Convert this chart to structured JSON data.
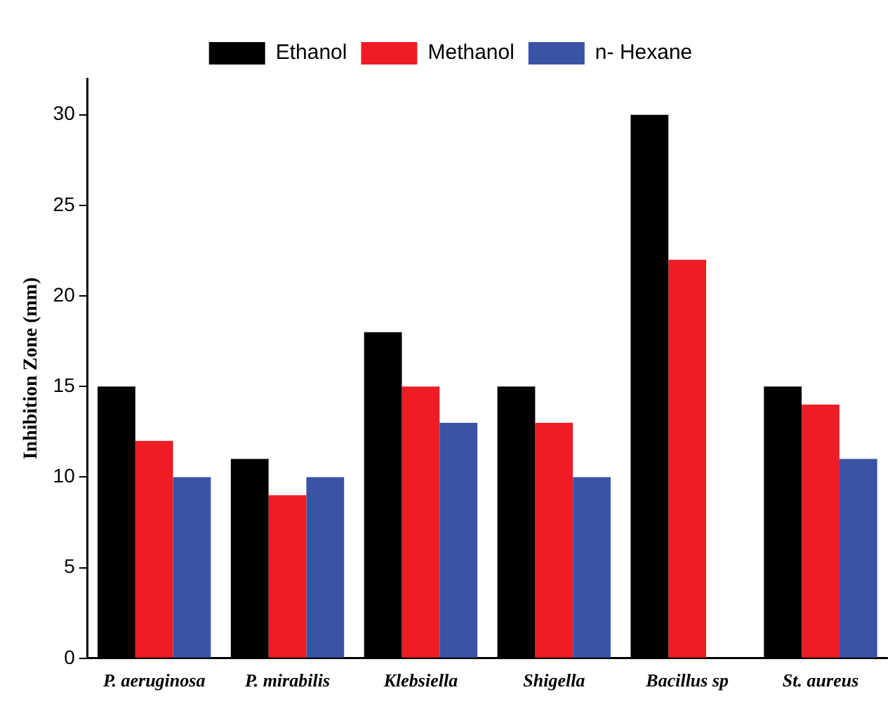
{
  "chart_data": {
    "type": "bar",
    "ylabel": "Inhibition Zone (mm)",
    "categories": [
      "P. aeruginosa",
      "P. mirabilis",
      "Klebsiella",
      "Shigella",
      "Bacillus sp",
      "St. aureus"
    ],
    "series": [
      {
        "name": "Ethanol",
        "color": "#000000",
        "values": [
          15,
          11,
          18,
          15,
          30,
          15
        ]
      },
      {
        "name": "Methanol",
        "color": "#ee1c25",
        "values": [
          12,
          9,
          15,
          13,
          22,
          14
        ]
      },
      {
        "name": "n- Hexane",
        "color": "#3a53a4",
        "values": [
          10,
          10,
          13,
          10,
          null,
          11
        ]
      }
    ],
    "ylim": [
      0,
      32
    ],
    "yticks": [
      0,
      5,
      10,
      15,
      20,
      25,
      30
    ],
    "grid": false,
    "legend": "top"
  }
}
